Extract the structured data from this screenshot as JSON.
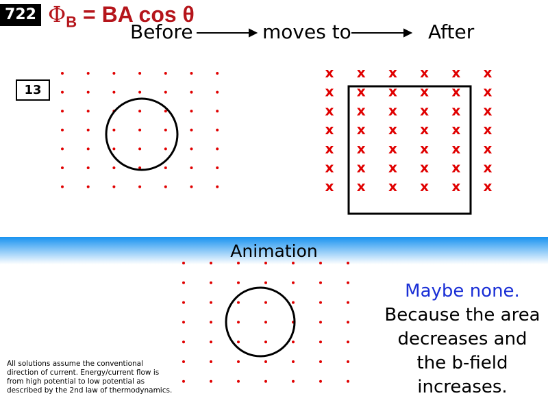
{
  "slide_number": "722",
  "formula": {
    "phi": "Φ",
    "sub": "B",
    "rest": " = BA cos θ"
  },
  "flow": {
    "before": "Before",
    "middle": "moves to",
    "after": "After"
  },
  "problem_number": "13",
  "banner": "Animation",
  "answer": {
    "line1": "Maybe none.",
    "line2": "Because the area decreases and the b-field increases."
  },
  "note": "All solutions assume the conventional direction of current. Energy/current flow is from high potential to low potential as described by the 2nd law of thermodynamics.",
  "colors": {
    "field": "#e00000",
    "formula": "#b5151b",
    "answer_highlight": "#1a2fd6",
    "banner": "#1993f0"
  },
  "field_symbols": {
    "before": "dot",
    "after": "x",
    "animation": "dot"
  },
  "x_symbol": "x"
}
